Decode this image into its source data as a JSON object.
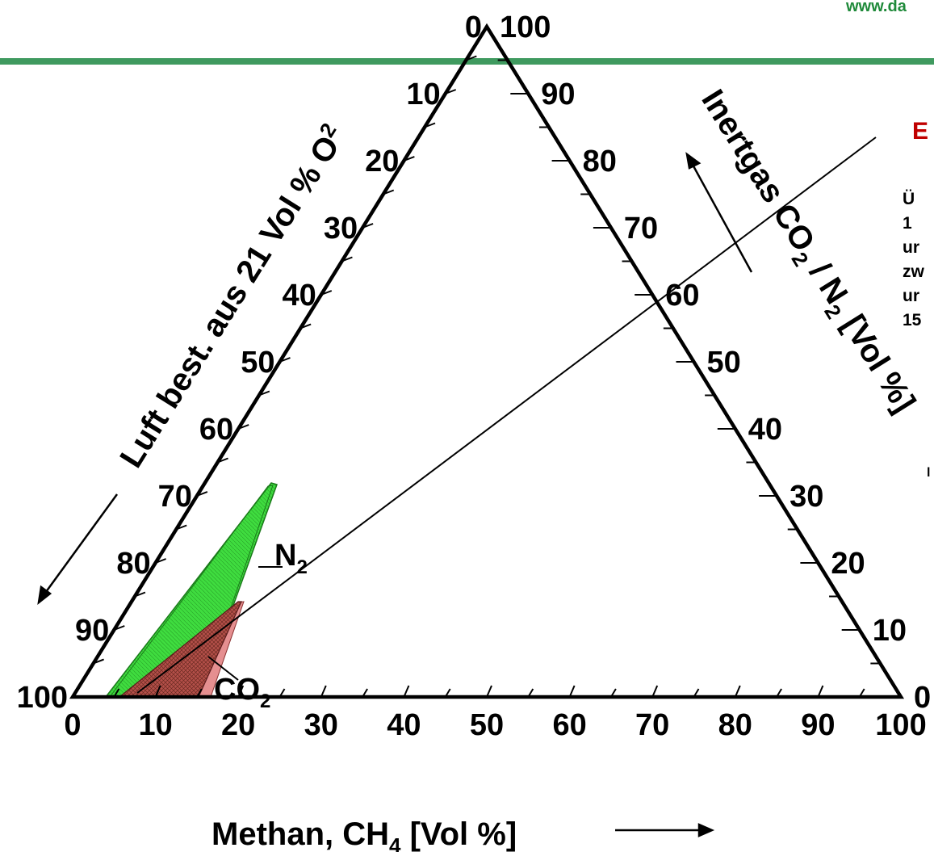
{
  "header": {
    "url_text": "www.da",
    "bar_color": "#3f9a5f",
    "side_heading": "E",
    "side_text_lines": [
      "Ü",
      " 1",
      "ur",
      "zw",
      "ur",
      "15"
    ],
    "side_fragment": "l"
  },
  "diagram": {
    "bottom_axis": {
      "title": "Methan, CH",
      "title_sub": "4",
      "title_suffix": " [Vol %]",
      "ticks": [
        "0",
        "10",
        "20",
        "30",
        "40",
        "50",
        "60",
        "70",
        "80",
        "90",
        "100"
      ]
    },
    "left_axis": {
      "title": "Luft  best. aus 21 Vol % O",
      "title_sub": "2",
      "ticks": [
        "100",
        "90",
        "80",
        "70",
        "60",
        "50",
        "40",
        "30",
        "20",
        "10",
        "0"
      ]
    },
    "right_axis": {
      "title_prefix": "Inertgas CO",
      "title_sub1": "2",
      "title_mid": " / N",
      "title_sub2": "2",
      "title_suffix": " [Vol %]",
      "ticks": [
        "0",
        "10",
        "20",
        "30",
        "40",
        "50",
        "60",
        "70",
        "80",
        "90",
        "100"
      ]
    },
    "regions": [
      {
        "label": "N",
        "label_sub": "2",
        "fill": "#3dd93d",
        "stroke": "#1a7a1a"
      },
      {
        "label": "CO",
        "label_sub": "2",
        "fill": "#b04a4a",
        "stroke": "#6a2020"
      }
    ]
  }
}
